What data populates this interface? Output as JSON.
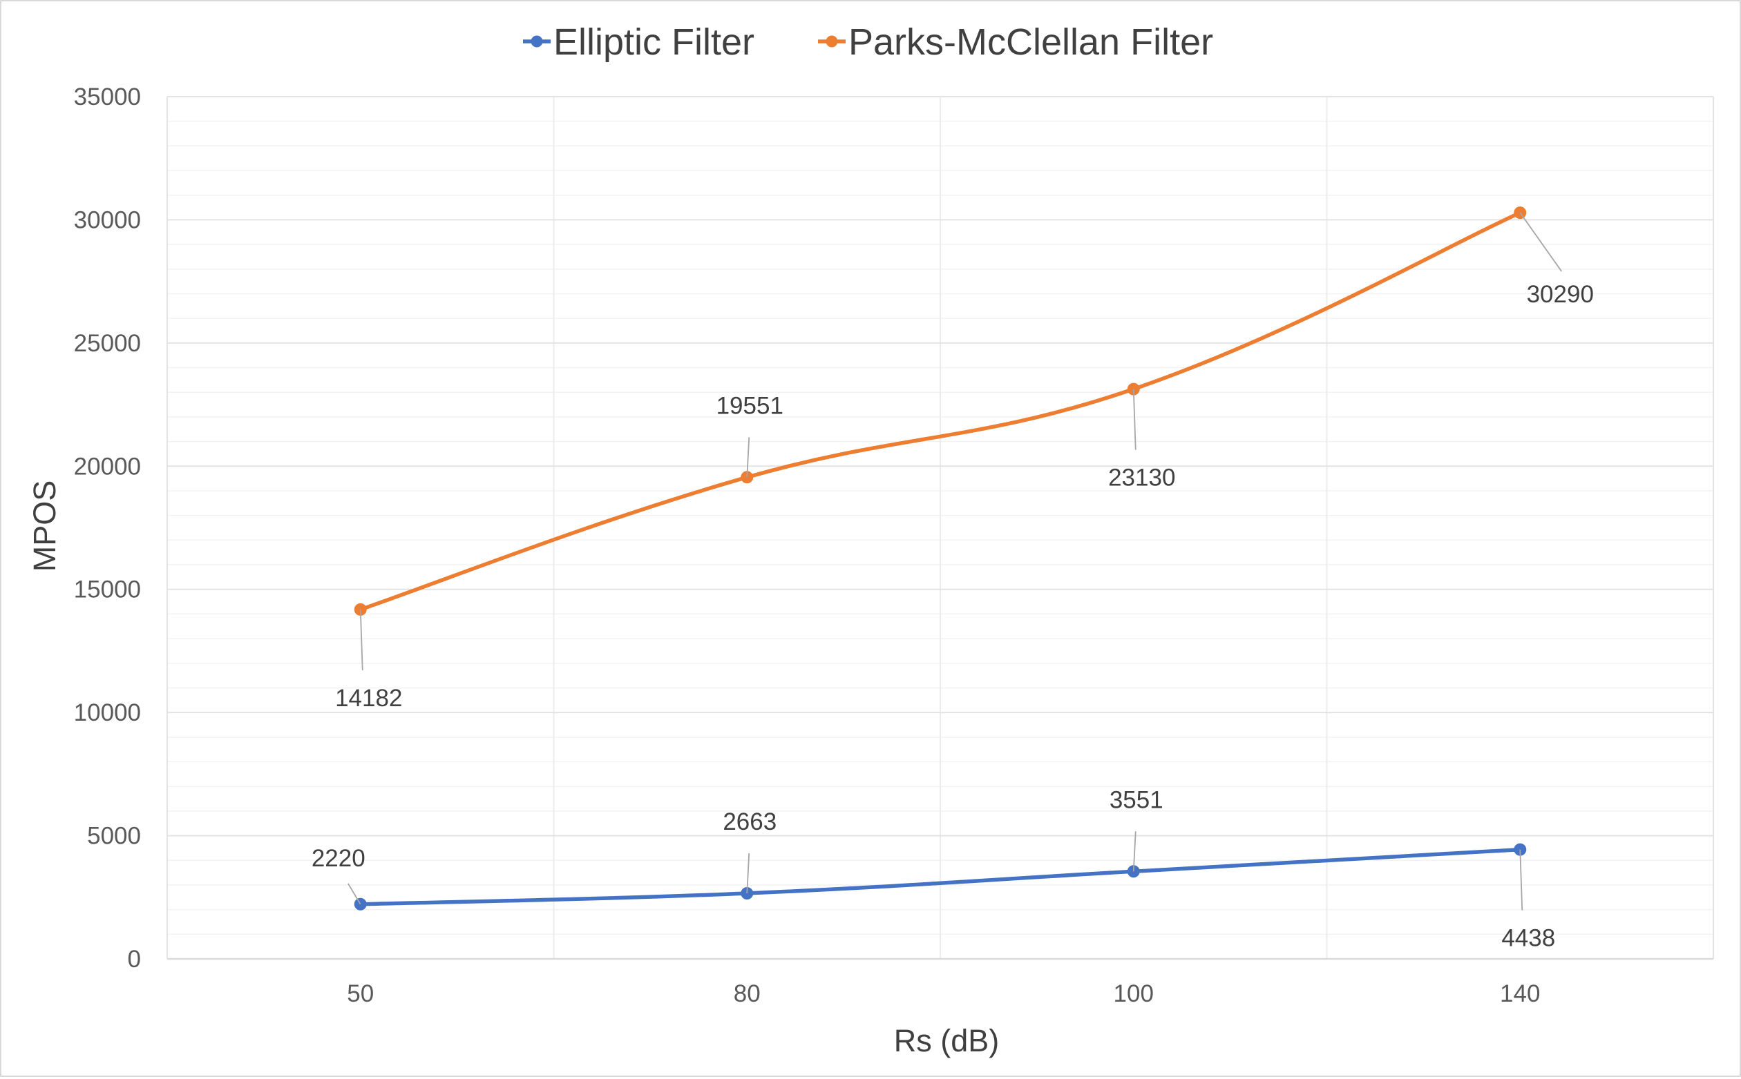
{
  "chart_data": {
    "type": "line",
    "categories": [
      "50",
      "80",
      "100",
      "140"
    ],
    "series": [
      {
        "name": "Elliptic Filter",
        "values": [
          2220,
          2663,
          3551,
          4438
        ],
        "color": "#4472C4",
        "data_labels": [
          "2220",
          "2663",
          "3551",
          "4438"
        ]
      },
      {
        "name": "Parks-McClellan Filter",
        "values": [
          14182,
          19551,
          23130,
          30290
        ],
        "color": "#ED7D31",
        "data_labels": [
          "14182",
          "19551",
          "23130",
          "30290"
        ]
      }
    ],
    "xlabel": "Rs (dB)",
    "ylabel": "MPOS",
    "ylim": [
      0,
      35000
    ],
    "yticks": [
      "0",
      "5000",
      "10000",
      "15000",
      "20000",
      "25000",
      "30000",
      "35000"
    ],
    "grid": true,
    "smooth_lines": true,
    "legend_position": "top"
  }
}
